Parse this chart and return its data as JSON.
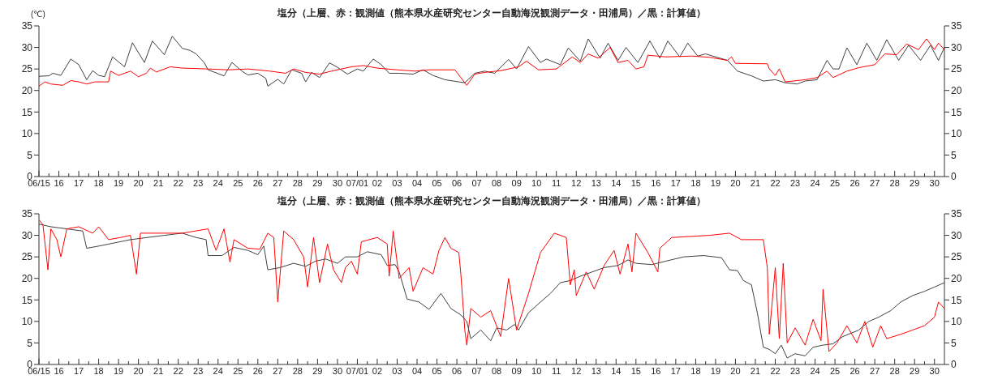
{
  "chart_data": [
    {
      "type": "line",
      "title": "塩分（上層、赤：観測値（熊本県水産研究センター自動海況観測データ・田浦局）／黒：計算値）",
      "ylabel": "(℃)",
      "xlim": [
        "--06-15",
        "--07-30T12:00"
      ],
      "xticks": [
        {
          "value": "--06-15",
          "label": "06/15"
        },
        {
          "value": "--06-15T12:00",
          "label": null
        },
        {
          "value": "--06-16",
          "label": "16"
        },
        {
          "value": "--06-16T12:00",
          "label": null
        },
        {
          "value": "--06-17",
          "label": "17"
        },
        {
          "value": "--06-17T12:00",
          "label": null
        },
        {
          "value": "--06-18",
          "label": "18"
        },
        {
          "value": "--06-18T12:00",
          "label": null
        },
        {
          "value": "--06-19",
          "label": "19"
        },
        {
          "value": "--06-19T12:00",
          "label": null
        },
        {
          "value": "--06-20",
          "label": "20"
        },
        {
          "value": "--06-20T12:00",
          "label": null
        },
        {
          "value": "--06-21",
          "label": "21"
        },
        {
          "value": "--06-21T12:00",
          "label": null
        },
        {
          "value": "--06-22",
          "label": "22"
        },
        {
          "value": "--06-22T12:00",
          "label": null
        },
        {
          "value": "--06-23",
          "label": "23"
        },
        {
          "value": "--06-23T12:00",
          "label": null
        },
        {
          "value": "--06-24",
          "label": "24"
        },
        {
          "value": "--06-24T12:00",
          "label": null
        },
        {
          "value": "--06-25",
          "label": "25"
        },
        {
          "value": "--06-25T12:00",
          "label": null
        },
        {
          "value": "--06-26",
          "label": "26"
        },
        {
          "value": "--06-26T12:00",
          "label": null
        },
        {
          "value": "--06-27",
          "label": "27"
        },
        {
          "value": "--06-27T12:00",
          "label": null
        },
        {
          "value": "--06-28",
          "label": "28"
        },
        {
          "value": "--06-28T12:00",
          "label": null
        },
        {
          "value": "--06-29",
          "label": "29"
        },
        {
          "value": "--06-29T12:00",
          "label": null
        },
        {
          "value": "--06-30",
          "label": "30"
        },
        {
          "value": "--06-30T12:00",
          "label": null
        },
        {
          "value": "--07-01",
          "label": "07/01"
        },
        {
          "value": "--07-01T12:00",
          "label": null
        },
        {
          "value": "--07-02",
          "label": "02"
        },
        {
          "value": "--07-02T12:00",
          "label": null
        },
        {
          "value": "--07-03",
          "label": "03"
        },
        {
          "value": "--07-03T12:00",
          "label": null
        },
        {
          "value": "--07-04",
          "label": "04"
        },
        {
          "value": "--07-04T12:00",
          "label": null
        },
        {
          "value": "--07-05",
          "label": "05"
        },
        {
          "value": "--07-05T12:00",
          "label": null
        },
        {
          "value": "--07-06",
          "label": "06"
        },
        {
          "value": "--07-06T12:00",
          "label": null
        },
        {
          "value": "--07-07",
          "label": "07"
        },
        {
          "value": "--07-07T12:00",
          "label": null
        },
        {
          "value": "--07-08",
          "label": "08"
        },
        {
          "value": "--07-08T12:00",
          "label": null
        },
        {
          "value": "--07-09",
          "label": "09"
        },
        {
          "value": "--07-09T12:00",
          "label": null
        },
        {
          "value": "--07-10",
          "label": "10"
        },
        {
          "value": "--07-10T12:00",
          "label": null
        },
        {
          "value": "--07-11",
          "label": "11"
        },
        {
          "value": "--07-11T12:00",
          "label": null
        },
        {
          "value": "--07-12",
          "label": "12"
        },
        {
          "value": "--07-12T12:00",
          "label": null
        },
        {
          "value": "--07-13",
          "label": "13"
        },
        {
          "value": "--07-13T12:00",
          "label": null
        },
        {
          "value": "--07-14",
          "label": "14"
        },
        {
          "value": "--07-14T12:00",
          "label": null
        },
        {
          "value": "--07-15",
          "label": "15"
        },
        {
          "value": "--07-15T12:00",
          "label": null
        },
        {
          "value": "--07-16",
          "label": "16"
        },
        {
          "value": "--07-16T12:00",
          "label": null
        },
        {
          "value": "--07-17",
          "label": "17"
        },
        {
          "value": "--07-17T12:00",
          "label": null
        },
        {
          "value": "--07-18",
          "label": "18"
        },
        {
          "value": "--07-18T12:00",
          "label": null
        },
        {
          "value": "--07-19",
          "label": "19"
        },
        {
          "value": "--07-19T12:00",
          "label": null
        },
        {
          "value": "--07-20",
          "label": "20"
        },
        {
          "value": "--07-20T12:00",
          "label": null
        },
        {
          "value": "--07-21",
          "label": "21"
        },
        {
          "value": "--07-21T12:00",
          "label": null
        },
        {
          "value": "--07-22",
          "label": "22"
        },
        {
          "value": "--07-22T12:00",
          "label": null
        },
        {
          "value": "--07-23",
          "label": "23"
        },
        {
          "value": "--07-23T12:00",
          "label": null
        },
        {
          "value": "--07-24",
          "label": "24"
        },
        {
          "value": "--07-24T12:00",
          "label": null
        },
        {
          "value": "--07-25",
          "label": "25"
        },
        {
          "value": "--07-25T12:00",
          "label": null
        },
        {
          "value": "--07-26",
          "label": "26"
        },
        {
          "value": "--07-26T12:00",
          "label": null
        },
        {
          "value": "--07-27",
          "label": "27"
        },
        {
          "value": "--07-27T12:00",
          "label": null
        },
        {
          "value": "--07-28",
          "label": "28"
        },
        {
          "value": "--07-28T12:00",
          "label": null
        },
        {
          "value": "--07-29",
          "label": "29"
        },
        {
          "value": "--07-29T12:00",
          "label": null
        },
        {
          "value": "--07-30",
          "label": "30"
        }
      ],
      "ylim": [
        0,
        35
      ],
      "yticks": [
        0,
        5,
        10,
        15,
        20,
        25,
        30,
        35
      ],
      "y2lim": [
        0,
        35
      ],
      "y2ticks": [
        0,
        5,
        10,
        15,
        20,
        25,
        30,
        35
      ],
      "series": [
        {
          "color": "#404040",
          "x": [
            "--06-15T00:00",
            "--06-15T12:00",
            "--06-15T16:48",
            "--06-16T02:24",
            "--06-16T14:24",
            "--06-17T00:00",
            "--06-17T09:36",
            "--06-17T16:48",
            "--06-18T00:00",
            "--06-18T07:12",
            "--06-18T16:48",
            "--06-19T07:12",
            "--06-19T16:48",
            "--06-20T07:12",
            "--06-20T16:48",
            "--06-21T07:12",
            "--06-21T16:48",
            "--06-22T04:48",
            "--06-22T14:24",
            "--06-22T21:36",
            "--06-23T07:12",
            "--06-23T12:00",
            "--06-24T07:12",
            "--06-24T16:48",
            "--06-25T04:48",
            "--06-25T12:00",
            "--06-26T00:00",
            "--06-26T09:36",
            "--06-26T12:00",
            "--06-27T00:00",
            "--06-27T07:12",
            "--06-27T16:48",
            "--06-28T04:48",
            "--06-28T09:36",
            "--06-28T16:48",
            "--06-29T02:24",
            "--06-29T14:24",
            "--06-30T00:00",
            "--06-30T12:00",
            "--07-01T00:00",
            "--07-01T07:12",
            "--07-01T19:12",
            "--07-02T04:48",
            "--07-02T14:24",
            "--07-03T02:24",
            "--07-03T19:12",
            "--07-04T07:12",
            "--07-04T19:12",
            "--07-05T09:36",
            "--07-06T02:24",
            "--07-06T09:36",
            "--07-06T21:36",
            "--07-07T09:36",
            "--07-07T21:36",
            "--07-08T14:24",
            "--07-09T00:00",
            "--07-09T14:24",
            "--07-10T04:48",
            "--07-10T12:00",
            "--07-11T04:48",
            "--07-11T14:24",
            "--07-12T04:48",
            "--07-12T14:24",
            "--07-13T04:48",
            "--07-13T14:24",
            "--07-14T02:24",
            "--07-14T12:00",
            "--07-15T02:24",
            "--07-15T16:48",
            "--07-16T04:48",
            "--07-16T14:24",
            "--07-17T04:48",
            "--07-17T14:24",
            "--07-18T02:24",
            "--07-18T12:00",
            "--07-19T00:00",
            "--07-19T14:24",
            "--07-20T02:24",
            "--07-20T19:12",
            "--07-21T09:36",
            "--07-22T00:00",
            "--07-22T12:00",
            "--07-23T02:24",
            "--07-23T12:00",
            "--07-24T02:24",
            "--07-24T14:24",
            "--07-24T21:36",
            "--07-25T04:48",
            "--07-25T14:24",
            "--07-26T02:24",
            "--07-26T14:24",
            "--07-27T02:24",
            "--07-27T14:24",
            "--07-28T04:48",
            "--07-28T16:48",
            "--07-29T07:12",
            "--07-29T19:12",
            "--07-30T04:48",
            "--07-30T12:00"
          ],
          "values": [
            23.3,
            23.4,
            24.0,
            23.5,
            27.3,
            26.0,
            22.5,
            24.6,
            23.5,
            23.2,
            27.8,
            25.5,
            31.1,
            26.5,
            31.5,
            28.3,
            32.6,
            29.8,
            29.3,
            28.5,
            26.5,
            24.8,
            23.4,
            26.5,
            24.5,
            23.6,
            24.0,
            22.8,
            21.0,
            22.6,
            21.5,
            24.8,
            24.0,
            22.0,
            24.2,
            23.0,
            26.4,
            25.4,
            23.8,
            25.0,
            24.5,
            27.3,
            26.0,
            24.0,
            24.0,
            23.8,
            24.8,
            23.5,
            22.5,
            22.0,
            21.8,
            24.0,
            24.5,
            24.0,
            27.2,
            25.0,
            30.2,
            26.5,
            27.3,
            26.0,
            29.9,
            26.8,
            32.0,
            27.5,
            31.0,
            27.0,
            30.0,
            26.5,
            31.5,
            27.5,
            31.5,
            27.8,
            31.0,
            28.0,
            28.5,
            27.8,
            27.0,
            24.5,
            23.4,
            22.2,
            22.5,
            21.8,
            21.5,
            22.2,
            22.5,
            27.0,
            25.0,
            25.0,
            29.9,
            26.0,
            31.0,
            27.0,
            31.8,
            27.0,
            30.5,
            27.0,
            30.5,
            27.0,
            30.0
          ]
        },
        {
          "color": "#ff0000",
          "x": [
            "--06-15T00:00",
            "--06-15T07:12",
            "--06-15T14:24",
            "--06-16T04:48",
            "--06-16T14:24",
            "--06-17T00:00",
            "--06-17T09:36",
            "--06-17T19:12",
            "--06-18T12:00",
            "--06-18T14:24",
            "--06-19T00:00",
            "--06-19T14:24",
            "--06-20T00:00",
            "--06-20T09:36",
            "--06-20T14:24",
            "--06-20T21:36",
            "--06-21T14:24",
            "--06-22T04:48",
            "--06-23T12:00",
            "--06-24T12:00",
            "--06-25T12:00",
            "--06-26T14:24",
            "--06-27T09:36",
            "--06-27T19:12",
            "--06-28T09:36",
            "--06-29T02:24",
            "--06-29T16:48",
            "--06-30T16:48",
            "--07-01T07:12",
            "--07-02T00:00",
            "--07-03T00:00",
            "--07-03T21:36",
            "--07-04T14:24",
            "--07-05T21:36",
            "--07-06T04:48",
            "--07-06T12:00",
            "--07-06T21:36",
            "--07-07T09:36",
            "--07-08T04:48",
            "--07-09T02:24",
            "--07-09T12:00",
            "--07-10T02:24",
            "--07-11T00:00",
            "--07-11T19:12",
            "--07-12T04:48",
            "--07-12T14:24",
            "--07-13T02:24",
            "--07-13T16:48",
            "--07-14T02:24",
            "--07-14T14:24",
            "--07-15T00:00",
            "--07-15T09:36",
            "--07-15T14:24",
            "--07-16T12:00",
            "--07-17T19:12",
            "--07-18T16:48",
            "--07-19T14:24",
            "--07-19T19:12",
            "--07-20T00:00",
            "--07-21T14:24",
            "--07-21T16:48",
            "--07-22T00:00",
            "--07-22T04:48",
            "--07-22T12:00",
            "--07-23T12:00",
            "--07-24T02:24",
            "--07-24T14:24",
            "--07-24T21:36",
            "--07-25T14:24",
            "--07-26T04:48",
            "--07-27T00:00",
            "--07-27T12:00",
            "--07-28T02:24",
            "--07-28T14:24",
            "--07-29T04:48",
            "--07-29T14:24",
            "--07-30T00:00",
            "--07-30T04:48",
            "--07-30T12:00"
          ],
          "values": [
            21.0,
            22.0,
            21.5,
            21.2,
            22.3,
            22.0,
            21.5,
            22.0,
            22.0,
            24.5,
            23.5,
            24.5,
            23.2,
            24.0,
            25.2,
            24.3,
            25.5,
            25.2,
            25.0,
            24.8,
            25.0,
            24.5,
            24.0,
            25.0,
            24.2,
            23.8,
            24.5,
            25.5,
            25.8,
            25.2,
            24.8,
            24.5,
            24.8,
            24.8,
            23.0,
            21.2,
            23.8,
            24.2,
            24.6,
            25.5,
            26.8,
            24.8,
            25.0,
            27.8,
            26.5,
            28.5,
            27.5,
            30.0,
            26.5,
            27.0,
            25.0,
            25.5,
            28.2,
            27.8,
            28.0,
            27.7,
            27.0,
            27.8,
            26.3,
            26.2,
            25.0,
            23.5,
            25.0,
            22.0,
            22.5,
            23.0,
            24.5,
            23.0,
            24.5,
            25.3,
            26.0,
            28.5,
            28.3,
            30.8,
            29.5,
            32.0,
            29.5,
            31.0,
            29.5
          ]
        }
      ]
    },
    {
      "type": "line",
      "title": "塩分（上層、赤：観測値（熊本県水産研究センター自動海況観測データ・田浦局）／黒：計算値）",
      "xlim": [
        "--06-15",
        "--07-30T12:00"
      ],
      "xticks": [
        {
          "value": "--06-15",
          "label": "06/15"
        },
        {
          "value": "--06-15T12:00",
          "label": null
        },
        {
          "value": "--06-16",
          "label": "16"
        },
        {
          "value": "--06-16T12:00",
          "label": null
        },
        {
          "value": "--06-17",
          "label": "17"
        },
        {
          "value": "--06-17T12:00",
          "label": null
        },
        {
          "value": "--06-18",
          "label": "18"
        },
        {
          "value": "--06-18T12:00",
          "label": null
        },
        {
          "value": "--06-19",
          "label": "19"
        },
        {
          "value": "--06-19T12:00",
          "label": null
        },
        {
          "value": "--06-20",
          "label": "20"
        },
        {
          "value": "--06-20T12:00",
          "label": null
        },
        {
          "value": "--06-21",
          "label": "21"
        },
        {
          "value": "--06-21T12:00",
          "label": null
        },
        {
          "value": "--06-22",
          "label": "22"
        },
        {
          "value": "--06-22T12:00",
          "label": null
        },
        {
          "value": "--06-23",
          "label": "23"
        },
        {
          "value": "--06-23T12:00",
          "label": null
        },
        {
          "value": "--06-24",
          "label": "24"
        },
        {
          "value": "--06-24T12:00",
          "label": null
        },
        {
          "value": "--06-25",
          "label": "25"
        },
        {
          "value": "--06-25T12:00",
          "label": null
        },
        {
          "value": "--06-26",
          "label": "26"
        },
        {
          "value": "--06-26T12:00",
          "label": null
        },
        {
          "value": "--06-27",
          "label": "27"
        },
        {
          "value": "--06-27T12:00",
          "label": null
        },
        {
          "value": "--06-28",
          "label": "28"
        },
        {
          "value": "--06-28T12:00",
          "label": null
        },
        {
          "value": "--06-29",
          "label": "29"
        },
        {
          "value": "--06-29T12:00",
          "label": null
        },
        {
          "value": "--06-30",
          "label": "30"
        },
        {
          "value": "--06-30T12:00",
          "label": null
        },
        {
          "value": "--07-01",
          "label": "07/01"
        },
        {
          "value": "--07-01T12:00",
          "label": null
        },
        {
          "value": "--07-02",
          "label": "02"
        },
        {
          "value": "--07-02T12:00",
          "label": null
        },
        {
          "value": "--07-03",
          "label": "03"
        },
        {
          "value": "--07-03T12:00",
          "label": null
        },
        {
          "value": "--07-04",
          "label": "04"
        },
        {
          "value": "--07-04T12:00",
          "label": null
        },
        {
          "value": "--07-05",
          "label": "05"
        },
        {
          "value": "--07-05T12:00",
          "label": null
        },
        {
          "value": "--07-06",
          "label": "06"
        },
        {
          "value": "--07-06T12:00",
          "label": null
        },
        {
          "value": "--07-07",
          "label": "07"
        },
        {
          "value": "--07-07T12:00",
          "label": null
        },
        {
          "value": "--07-08",
          "label": "08"
        },
        {
          "value": "--07-08T12:00",
          "label": null
        },
        {
          "value": "--07-09",
          "label": "09"
        },
        {
          "value": "--07-09T12:00",
          "label": null
        },
        {
          "value": "--07-10",
          "label": "10"
        },
        {
          "value": "--07-10T12:00",
          "label": null
        },
        {
          "value": "--07-11",
          "label": "11"
        },
        {
          "value": "--07-11T12:00",
          "label": null
        },
        {
          "value": "--07-12",
          "label": "12"
        },
        {
          "value": "--07-12T12:00",
          "label": null
        },
        {
          "value": "--07-13",
          "label": "13"
        },
        {
          "value": "--07-13T12:00",
          "label": null
        },
        {
          "value": "--07-14",
          "label": "14"
        },
        {
          "value": "--07-14T12:00",
          "label": null
        },
        {
          "value": "--07-15",
          "label": "15"
        },
        {
          "value": "--07-15T12:00",
          "label": null
        },
        {
          "value": "--07-16",
          "label": "16"
        },
        {
          "value": "--07-16T12:00",
          "label": null
        },
        {
          "value": "--07-17",
          "label": "17"
        },
        {
          "value": "--07-17T12:00",
          "label": null
        },
        {
          "value": "--07-18",
          "label": "18"
        },
        {
          "value": "--07-18T12:00",
          "label": null
        },
        {
          "value": "--07-19",
          "label": "19"
        },
        {
          "value": "--07-19T12:00",
          "label": null
        },
        {
          "value": "--07-20",
          "label": "20"
        },
        {
          "value": "--07-20T12:00",
          "label": null
        },
        {
          "value": "--07-21",
          "label": "21"
        },
        {
          "value": "--07-21T12:00",
          "label": null
        },
        {
          "value": "--07-22",
          "label": "22"
        },
        {
          "value": "--07-22T12:00",
          "label": null
        },
        {
          "value": "--07-23",
          "label": "23"
        },
        {
          "value": "--07-23T12:00",
          "label": null
        },
        {
          "value": "--07-24",
          "label": "24"
        },
        {
          "value": "--07-24T12:00",
          "label": null
        },
        {
          "value": "--07-25",
          "label": "25"
        },
        {
          "value": "--07-25T12:00",
          "label": null
        },
        {
          "value": "--07-26",
          "label": "26"
        },
        {
          "value": "--07-26T12:00",
          "label": null
        },
        {
          "value": "--07-27",
          "label": "27"
        },
        {
          "value": "--07-27T12:00",
          "label": null
        },
        {
          "value": "--07-28",
          "label": "28"
        },
        {
          "value": "--07-28T12:00",
          "label": null
        },
        {
          "value": "--07-29",
          "label": "29"
        },
        {
          "value": "--07-29T12:00",
          "label": null
        },
        {
          "value": "--07-30",
          "label": "30"
        }
      ],
      "ylim": [
        0,
        35
      ],
      "yticks": [
        0,
        5,
        10,
        15,
        20,
        25,
        30,
        35
      ],
      "y2lim": [
        0,
        35
      ],
      "y2ticks": [
        0,
        5,
        10,
        15,
        20,
        25,
        30,
        35
      ],
      "series": [
        {
          "color": "#404040",
          "x": [
            "--06-15T00:00",
            "--06-15T14:24",
            "--06-16T09:36",
            "--06-17T04:48",
            "--06-17T09:36",
            "--06-18T00:00",
            "--06-19T14:24",
            "--06-21T07:12",
            "--06-22T04:48",
            "--06-22T21:36",
            "--06-23T09:36",
            "--06-23T12:00",
            "--06-24T04:48",
            "--06-24T19:12",
            "--06-25T12:00",
            "--06-26T00:00",
            "--06-26T07:12",
            "--06-26T12:00",
            "--06-27T02:24",
            "--06-27T19:12",
            "--06-28T09:36",
            "--06-28T21:36",
            "--06-29T09:36",
            "--06-30T00:00",
            "--06-30T09:36",
            "--07-01T00:00",
            "--07-01T12:00",
            "--07-02T04:48",
            "--07-02T12:00",
            "--07-02T21:36",
            "--07-03T02:24",
            "--07-03T12:00",
            "--07-04T02:24",
            "--07-04T14:24",
            "--07-05T04:48",
            "--07-05T16:48",
            "--07-06T04:48",
            "--07-06T12:00",
            "--07-06T16:48",
            "--07-07T04:48",
            "--07-07T16:48",
            "--07-08T00:00",
            "--07-08T12:00",
            "--07-08T21:36",
            "--07-09T02:24",
            "--07-09T14:24",
            "--07-10T04:48",
            "--07-10T16:48",
            "--07-11T04:48",
            "--07-11T16:48",
            "--07-12T04:48",
            "--07-12T19:12",
            "--07-13T09:36",
            "--07-14T02:24",
            "--07-14T14:24",
            "--07-15T00:00",
            "--07-15T19:12",
            "--07-16T12:00",
            "--07-17T09:36",
            "--07-18T09:36",
            "--07-19T07:12",
            "--07-19T16:48",
            "--07-20T02:24",
            "--07-20T09:36",
            "--07-20T19:12",
            "--07-21T02:24",
            "--07-21T09:36",
            "--07-21T16:48",
            "--07-22T00:00",
            "--07-22T07:12",
            "--07-22T14:24",
            "--07-23T00:00",
            "--07-23T12:00",
            "--07-23T21:36",
            "--07-24T09:36",
            "--07-24T21:36",
            "--07-25T09:36",
            "--07-26T04:48",
            "--07-26T16:48",
            "--07-27T04:48",
            "--07-27T19:12",
            "--07-28T07:12",
            "--07-28T21:36",
            "--07-29T12:00",
            "--07-30T00:00",
            "--07-30T12:00"
          ],
          "values": [
            32.6,
            32.0,
            31.5,
            31.0,
            27.0,
            27.5,
            29.0,
            30.0,
            30.5,
            29.5,
            29.0,
            25.3,
            25.3,
            27.2,
            26.5,
            25.5,
            27.5,
            22.0,
            22.5,
            23.5,
            22.8,
            24.0,
            24.5,
            23.5,
            25.0,
            25.0,
            26.2,
            25.5,
            23.0,
            23.2,
            21.5,
            15.2,
            14.5,
            12.8,
            16.5,
            13.0,
            11.5,
            10.0,
            6.0,
            8.0,
            5.5,
            8.5,
            8.0,
            9.3,
            8.0,
            12.0,
            14.5,
            16.5,
            19.0,
            19.5,
            20.5,
            21.5,
            22.5,
            23.0,
            24.3,
            23.5,
            23.2,
            24.0,
            25.0,
            25.3,
            24.8,
            22.0,
            21.8,
            19.5,
            18.5,
            12.0,
            4.0,
            3.5,
            2.5,
            4.5,
            1.5,
            2.5,
            2.0,
            4.0,
            4.5,
            4.8,
            6.5,
            8.0,
            10.0,
            11.0,
            12.5,
            14.5,
            16.0,
            17.0,
            18.0,
            19.0
          ]
        },
        {
          "color": "#ff0000",
          "x": [
            "--06-15T00:00",
            "--06-15T04:48",
            "--06-15T10:48",
            "--06-15T14:24",
            "--06-15T21:36",
            "--06-16T02:24",
            "--06-16T09:36",
            "--06-17T00:00",
            "--06-17T16:48",
            "--06-18T00:00",
            "--06-18T12:00",
            "--06-19T02:24",
            "--06-19T14:24",
            "--06-19T21:36",
            "--06-20T02:24",
            "--06-21T07:12",
            "--06-22T04:48",
            "--06-23T12:00",
            "--06-23T21:36",
            "--06-24T07:12",
            "--06-24T14:24",
            "--06-24T19:12",
            "--06-25T12:00",
            "--06-26T02:24",
            "--06-26T12:00",
            "--06-26T19:12",
            "--06-27T00:00",
            "--06-27T07:12",
            "--06-27T19:12",
            "--06-28T07:12",
            "--06-28T12:00",
            "--06-28T19:12",
            "--06-29T02:24",
            "--06-29T12:00",
            "--06-29T19:12",
            "--06-30T04:48",
            "--06-30T09:36",
            "--06-30T16:48",
            "--07-01T00:00",
            "--07-01T04:48",
            "--07-02T00:00",
            "--07-02T12:00",
            "--07-02T14:24",
            "--07-02T19:12",
            "--07-03T02:24",
            "--07-03T14:24",
            "--07-03T19:12",
            "--07-04T07:12",
            "--07-04T19:12",
            "--07-05T02:24",
            "--07-05T09:36",
            "--07-05T16:48",
            "--07-06T02:24",
            "--07-06T04:48",
            "--07-06T09:36",
            "--07-06T12:00",
            "--07-06T16:48",
            "--07-07T04:48",
            "--07-07T16:48",
            "--07-08T04:48",
            "--07-08T14:24",
            "--07-09T00:00",
            "--07-09T14:24",
            "--07-10T04:48",
            "--07-10T21:36",
            "--07-11T12:00",
            "--07-11T16:48",
            "--07-11T21:36",
            "--07-12T00:00",
            "--07-12T12:00",
            "--07-12T21:36",
            "--07-13T09:36",
            "--07-13T21:36",
            "--07-14T04:48",
            "--07-14T14:24",
            "--07-14T19:12",
            "--07-15T00:00",
            "--07-15T14:24",
            "--07-16T02:24",
            "--07-16T04:48",
            "--07-16T19:12",
            "--07-18T16:48",
            "--07-19T16:48",
            "--07-20T07:12",
            "--07-21T09:36",
            "--07-21T14:24",
            "--07-21T16:48",
            "--07-22T00:00",
            "--07-22T04:48",
            "--07-22T09:36",
            "--07-22T14:24",
            "--07-23T00:00",
            "--07-23T12:00",
            "--07-23T21:36",
            "--07-24T07:12",
            "--07-24T09:36",
            "--07-24T16:48",
            "--07-25T02:24",
            "--07-25T14:24",
            "--07-26T02:24",
            "--07-26T12:00",
            "--07-26T21:36",
            "--07-27T07:12",
            "--07-27T14:24",
            "--07-28T07:12",
            "--07-28T21:36",
            "--07-29T12:00",
            "--07-30T00:00",
            "--07-30T04:48",
            "--07-30T12:00"
          ],
          "values": [
            33.6,
            32.5,
            22.0,
            31.5,
            29.0,
            25.0,
            31.5,
            32.0,
            30.5,
            32.0,
            29.0,
            29.5,
            30.0,
            21.0,
            30.5,
            30.5,
            30.5,
            31.5,
            26.5,
            31.5,
            23.8,
            29.0,
            27.0,
            26.8,
            30.5,
            29.5,
            14.5,
            31.0,
            29.0,
            25.0,
            18.0,
            29.5,
            19.0,
            28.0,
            22.0,
            19.0,
            22.5,
            24.0,
            21.0,
            28.5,
            29.5,
            28.0,
            20.5,
            31.0,
            20.0,
            22.5,
            17.0,
            22.5,
            21.0,
            26.5,
            29.5,
            27.0,
            26.0,
            21.0,
            8.0,
            4.5,
            13.0,
            11.0,
            12.5,
            6.5,
            20.0,
            8.0,
            16.5,
            26.0,
            30.5,
            29.5,
            18.5,
            22.0,
            16.0,
            21.5,
            17.5,
            23.0,
            26.5,
            21.0,
            28.0,
            21.5,
            30.5,
            26.0,
            21.5,
            27.0,
            29.5,
            30.0,
            30.5,
            29.0,
            29.0,
            22.5,
            7.0,
            22.5,
            6.0,
            23.5,
            5.0,
            8.5,
            4.5,
            10.5,
            5.5,
            17.5,
            3.0,
            5.0,
            9.0,
            5.0,
            10.0,
            4.0,
            9.0,
            6.0,
            7.0,
            8.0,
            9.0,
            11.0,
            14.5,
            13.0
          ]
        }
      ]
    }
  ]
}
